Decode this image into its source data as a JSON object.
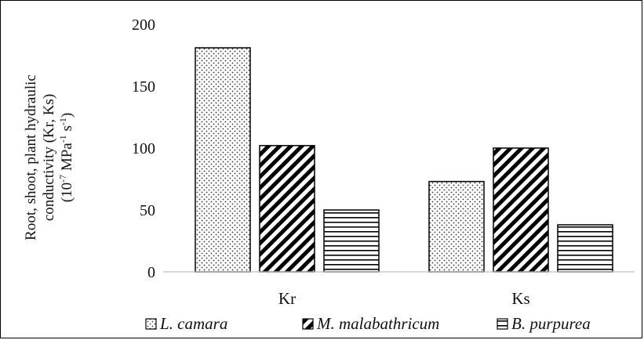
{
  "chart_data": {
    "type": "bar",
    "categories": [
      "Kr",
      "Ks"
    ],
    "series": [
      {
        "name": "L. camara",
        "values": [
          181,
          73
        ],
        "pattern": "dots"
      },
      {
        "name": "M. malabathricum",
        "values": [
          102,
          100
        ],
        "pattern": "diagonal"
      },
      {
        "name": "B. purpurea",
        "values": [
          50,
          38
        ],
        "pattern": "horizontal"
      }
    ],
    "ylabel_lines": [
      "Root, shoot, plant hydraulic",
      "conductivity (Kr, Ks)"
    ],
    "ylabel_units": {
      "open": "(10",
      "exp1": "-7",
      "mid": " MPa",
      "exp2": "-1",
      "mid2": " s",
      "exp3": "-1",
      "close": ")"
    },
    "yticks": [
      "0",
      "50",
      "100",
      "150",
      "200"
    ],
    "ylim": [
      0,
      200
    ],
    "grid": false,
    "legend_position": "bottom",
    "colors": {
      "stroke": "#000000",
      "fill": "#ffffff"
    }
  }
}
